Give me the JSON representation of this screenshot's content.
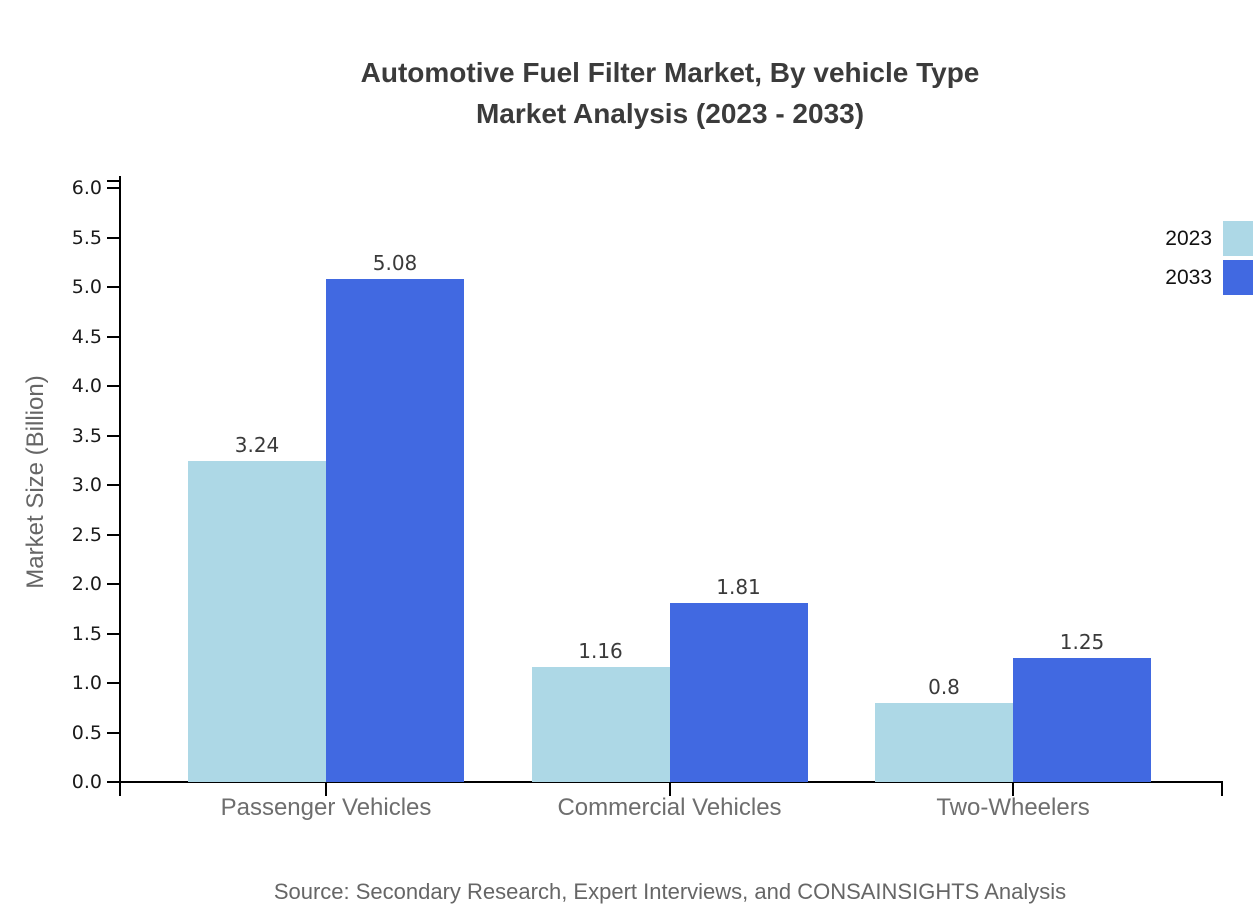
{
  "title": {
    "line1": "Automotive Fuel Filter Market, By vehicle Type",
    "line2": "Market Analysis (2023 - 2033)"
  },
  "y_axis": {
    "label": "Market Size (Billion)"
  },
  "source": {
    "text": "Source: Secondary Research, Expert Interviews, and CONSAINSIGHTS Analysis"
  },
  "legend": {
    "items": [
      {
        "label": "2023",
        "color": "#ADD8E6"
      },
      {
        "label": "2033",
        "color": "#4169E1"
      }
    ]
  },
  "chart_data": {
    "type": "bar",
    "title": "Automotive Fuel Filter Market, By vehicle Type — Market Analysis (2023 - 2033)",
    "categories": [
      "Passenger Vehicles",
      "Commercial Vehicles",
      "Two-Wheelers"
    ],
    "series": [
      {
        "name": "2023",
        "color": "#ADD8E6",
        "values": [
          3.24,
          1.16,
          0.8
        ],
        "labels": [
          "3.24",
          "1.16",
          "0.8"
        ]
      },
      {
        "name": "2033",
        "color": "#4169E1",
        "values": [
          5.08,
          1.81,
          1.25
        ],
        "labels": [
          "5.08",
          "1.81",
          "1.25"
        ]
      }
    ],
    "xlabel": "",
    "ylabel": "Market Size (Billion)",
    "ylim": [
      0,
      6.0
    ],
    "ytick_step": 0.5,
    "ytick_format_decimals": 1,
    "grid": false,
    "bar_value_labels": true,
    "legend_position": "top-right"
  }
}
